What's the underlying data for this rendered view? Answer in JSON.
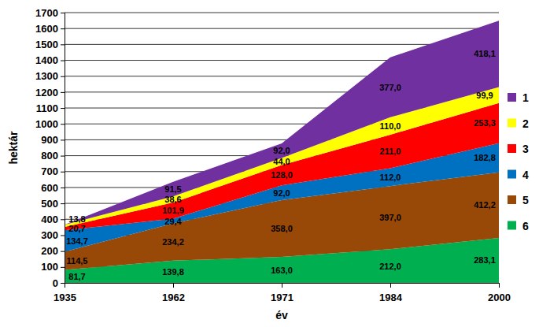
{
  "chart_data": {
    "type": "area",
    "stacked": true,
    "data_labels": true,
    "grid": true,
    "legend": "right",
    "x_label": "év",
    "y_label": "hektár",
    "categories": [
      "1935",
      "1962",
      "1971",
      "1984",
      "2000"
    ],
    "ylim": [
      0,
      1700
    ],
    "yticks": [
      0,
      100,
      200,
      300,
      400,
      500,
      600,
      700,
      800,
      900,
      1000,
      1100,
      1200,
      1300,
      1400,
      1500,
      1600,
      1700
    ],
    "series": [
      {
        "name": "1",
        "color": "#7030a0",
        "values": [
          0,
          91.5,
          92.0,
          377.0,
          418.1
        ],
        "value_labels": [
          null,
          "91,5",
          "92,0",
          "377,0",
          "418,1"
        ]
      },
      {
        "name": "2",
        "color": "#ffff00",
        "values": [
          13.8,
          38.6,
          44.0,
          110.0,
          99.9
        ],
        "value_labels": [
          "13,8",
          "38,6",
          "44,0",
          "110,0",
          "99,9"
        ]
      },
      {
        "name": "3",
        "color": "#ff0000",
        "values": [
          20.7,
          101.9,
          128.0,
          211.0,
          253.3
        ],
        "value_labels": [
          "20,7",
          "101,9",
          "128,0",
          "211,0",
          "253,3"
        ]
      },
      {
        "name": "4",
        "color": "#0070c0",
        "values": [
          134.7,
          29.4,
          92.0,
          112.0,
          182.8
        ],
        "value_labels": [
          "134,7",
          "29,4",
          "92,0",
          "112,0",
          "182,8"
        ]
      },
      {
        "name": "5",
        "color": "#984807",
        "values": [
          114.5,
          234.2,
          358.0,
          397.0,
          412.2
        ],
        "value_labels": [
          "114,5",
          "234,2",
          "358,0",
          "397,0",
          "412,2"
        ]
      },
      {
        "name": "6",
        "color": "#00b050",
        "values": [
          81.7,
          139.8,
          163.0,
          212.0,
          283.1
        ],
        "value_labels": [
          "81,7",
          "139,8",
          "163,0",
          "212,0",
          "283,1"
        ]
      }
    ]
  }
}
